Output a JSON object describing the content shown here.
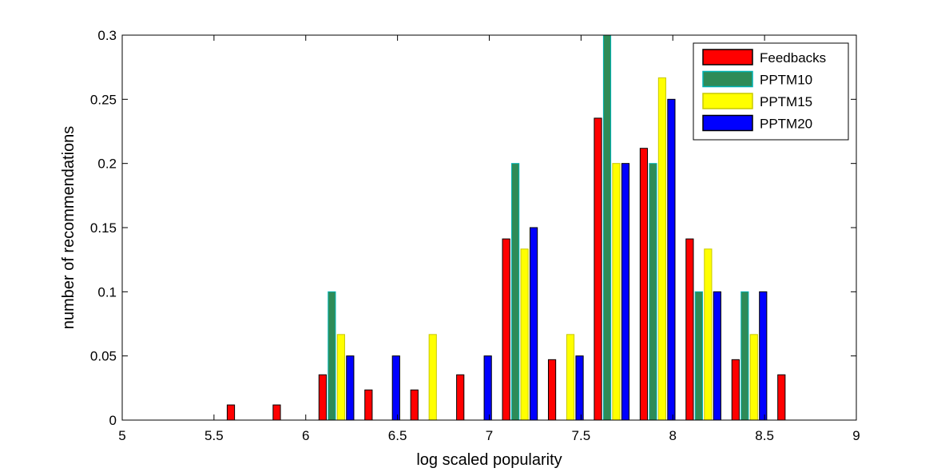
{
  "chart_data": {
    "type": "bar",
    "xlabel": "log scaled popularity",
    "ylabel": "number of recommendations",
    "xlim": [
      5,
      9
    ],
    "ylim": [
      0,
      0.3
    ],
    "xticks": [
      "5",
      "5.5",
      "6",
      "6.5",
      "7",
      "7.5",
      "8",
      "8.5",
      "9"
    ],
    "yticks": [
      "0",
      "0.05",
      "0.1",
      "0.15",
      "0.2",
      "0.25",
      "0.3"
    ],
    "grid": false,
    "legend_position": "top-right",
    "bin_centers": [
      5.167,
      5.417,
      5.667,
      5.917,
      6.167,
      6.417,
      6.667,
      6.917,
      7.167,
      7.417,
      7.667,
      7.917,
      8.167,
      8.417,
      8.667,
      8.917
    ],
    "series": [
      {
        "name": "Feedbacks",
        "color": "#ff0000",
        "edge": "#000000",
        "values": [
          0,
          0,
          0.0118,
          0.0118,
          0.0353,
          0.0235,
          0.0235,
          0.0353,
          0.1412,
          0.0471,
          0.2353,
          0.2118,
          0.1412,
          0.0471,
          0.0353,
          0
        ]
      },
      {
        "name": "PPTM10",
        "color": "#2e8b57",
        "edge": "#00b3b3",
        "values": [
          0,
          0,
          0,
          0,
          0.1,
          0,
          0,
          0,
          0.2,
          0,
          0.3,
          0.2,
          0.1,
          0.1,
          0,
          0
        ]
      },
      {
        "name": "PPTM15",
        "color": "#ffff00",
        "edge": "#c8c800",
        "values": [
          0,
          0,
          0,
          0,
          0.0667,
          0,
          0.0667,
          0,
          0.1333,
          0.0667,
          0.2,
          0.2667,
          0.1333,
          0.0667,
          0,
          0
        ]
      },
      {
        "name": "PPTM20",
        "color": "#0000ff",
        "edge": "#000000",
        "values": [
          0,
          0,
          0,
          0,
          0.05,
          0.05,
          0,
          0.05,
          0.15,
          0.05,
          0.2,
          0.25,
          0.1,
          0.1,
          0,
          0
        ]
      }
    ]
  }
}
